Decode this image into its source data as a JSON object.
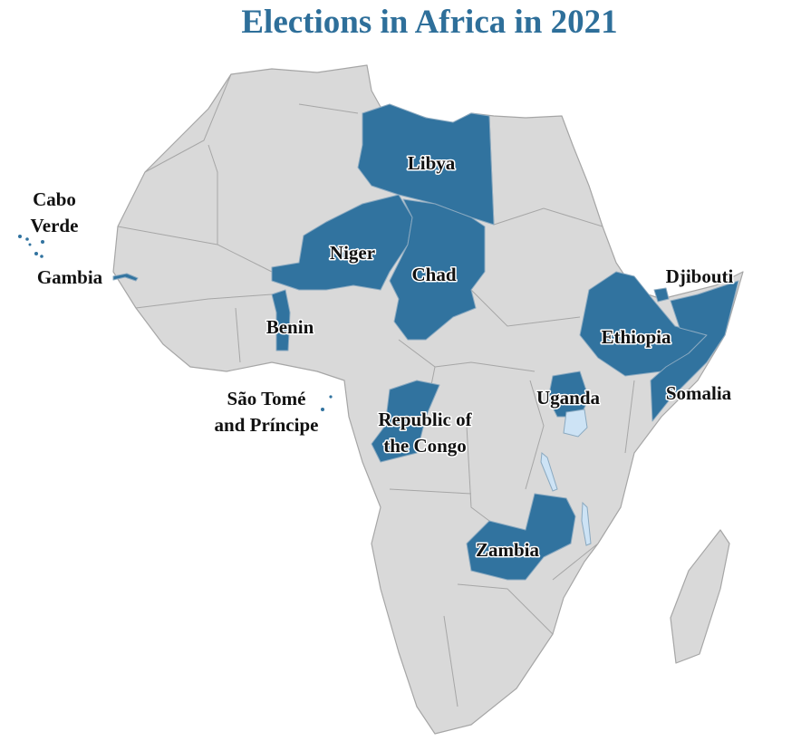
{
  "title": "Elections in Africa in 2021",
  "countries": [
    {
      "label": "Libya"
    },
    {
      "label": "Niger"
    },
    {
      "label": "Chad"
    },
    {
      "label": "Benin"
    },
    {
      "label": "Ethiopia"
    },
    {
      "label": "Djibouti"
    },
    {
      "label": "Somalia"
    },
    {
      "label": "Uganda"
    },
    {
      "label": "Zambia"
    },
    {
      "label": "Gambia"
    },
    {
      "lines": [
        "Cabo",
        "Verde"
      ]
    },
    {
      "lines": [
        "São Tomé",
        "and Príncipe"
      ]
    },
    {
      "lines": [
        "Republic of",
        "the Congo"
      ]
    }
  ]
}
